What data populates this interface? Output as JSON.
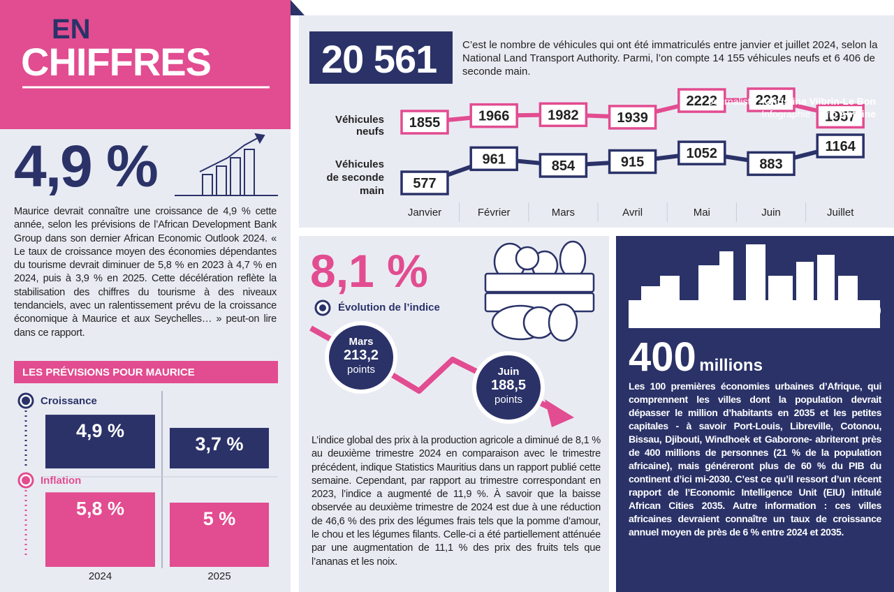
{
  "header": {
    "title_line1": "EN",
    "title_line2": "CHIFFRES",
    "journalist_label": "Journaliste :",
    "journalist": "Christina Vilbrin-Le Bon",
    "infographic_label": "Infographie :",
    "infographic": "Eric Antoine"
  },
  "growth": {
    "figure": "4,9 %",
    "text": "Maurice devrait connaître une croissance de 4,9 % cette année, selon les prévisions de l’African Development Bank Group dans son dernier African Economic Outlook 2024.  « Le taux de croissance moyen des économies dépendantes du tourisme devrait diminuer de 5,8 % en 2023 à 4,7 % en 2024, puis à 3,9 % en 2025. Cette décélération reflète la stabilisation des chiffres du tourisme à des niveaux tendanciels, avec un ralentissement prévu de la croissance économique à Maurice et aux Seychelles… » peut-on lire dans ce rapport."
  },
  "forecast": {
    "type": "bar",
    "title": "LES PRÉVISIONS POUR MAURICE",
    "categories": [
      "2024",
      "2025"
    ],
    "series": [
      {
        "name": "Croissance",
        "color": "#2a3268",
        "values": [
          4.9,
          3.7
        ],
        "value_labels": [
          "4,9 %",
          "3,7 %"
        ]
      },
      {
        "name": "Inflation",
        "color": "#e24c90",
        "values": [
          5.8,
          5
        ],
        "value_labels": [
          "5,8 %",
          "5 %"
        ]
      }
    ]
  },
  "vehicles": {
    "figure": "20 561",
    "text": "C’est le nombre de véhicules qui ont été immatriculés entre janvier et juillet 2024, selon la National Land Transport Authority. Parmi, l’on compte 14 155 véhicules neufs et 6 406 de seconde main.",
    "chart": {
      "type": "line",
      "categories": [
        "Janvier",
        "Février",
        "Mars",
        "Avril",
        "Mai",
        "Juin",
        "Juillet"
      ],
      "series": [
        {
          "name": "Véhicules neufs",
          "color": "#e24c90",
          "values": [
            1855,
            1966,
            1982,
            1939,
            2222,
            2234,
            1957
          ]
        },
        {
          "name": "Véhicules de seconde main",
          "color": "#2a3268",
          "values": [
            577,
            961,
            854,
            915,
            1052,
            883,
            1164
          ]
        }
      ]
    }
  },
  "index": {
    "figure": "8,1 %",
    "subtitle": "Évolution de l’indice",
    "points": [
      {
        "month": "Mars",
        "value": "213,2",
        "unit": "points"
      },
      {
        "month": "Juin",
        "value": "188,5",
        "unit": "points"
      }
    ],
    "text": "L’indice global des prix à la production agricole a diminué de 8,1 % au deuxième trimestre 2024 en comparaison avec le trimestre précédent, indique Statistics Mauritius dans un rapport publié cette semaine. Cependant, par rapport au trimestre correspondant en 2023, l’indice a augmenté de 11,9 %. À savoir que la baisse observée au deuxième trimestre de 2024 est due à une réduction de 46,6 % des prix des légumes frais tels que la pomme d’amour, le chou et les légumes filants. Celle-ci a été partiellement atténuée par une augmentation de 11,1 % des prix des fruits tels que l’ananas et les noix."
  },
  "cities": {
    "figure": "400",
    "unit": "millions",
    "text": "Les 100 premières économies urbaines d’Afrique, qui comprennent les villes dont la population devrait dépasser le million d’habitants en 2035 et les petites capitales - à savoir Port-Louis, Libreville, Cotonou, Bissau, Djibouti, Windhoek et Gaborone- abriteront près de 400 millions de personnes (21 % de la population africaine), mais généreront plus de 60 % du PIB du continent d’ici mi-2030. C’est ce qu’il ressort d’un récent rapport de l’Economic Intelligence Unit (EIU) intitulé African Cities 2035. Autre information : ces villes africaines devraient connaître un taux de croissance annuel moyen de près de 6 % entre 2024 et 2035."
  }
}
